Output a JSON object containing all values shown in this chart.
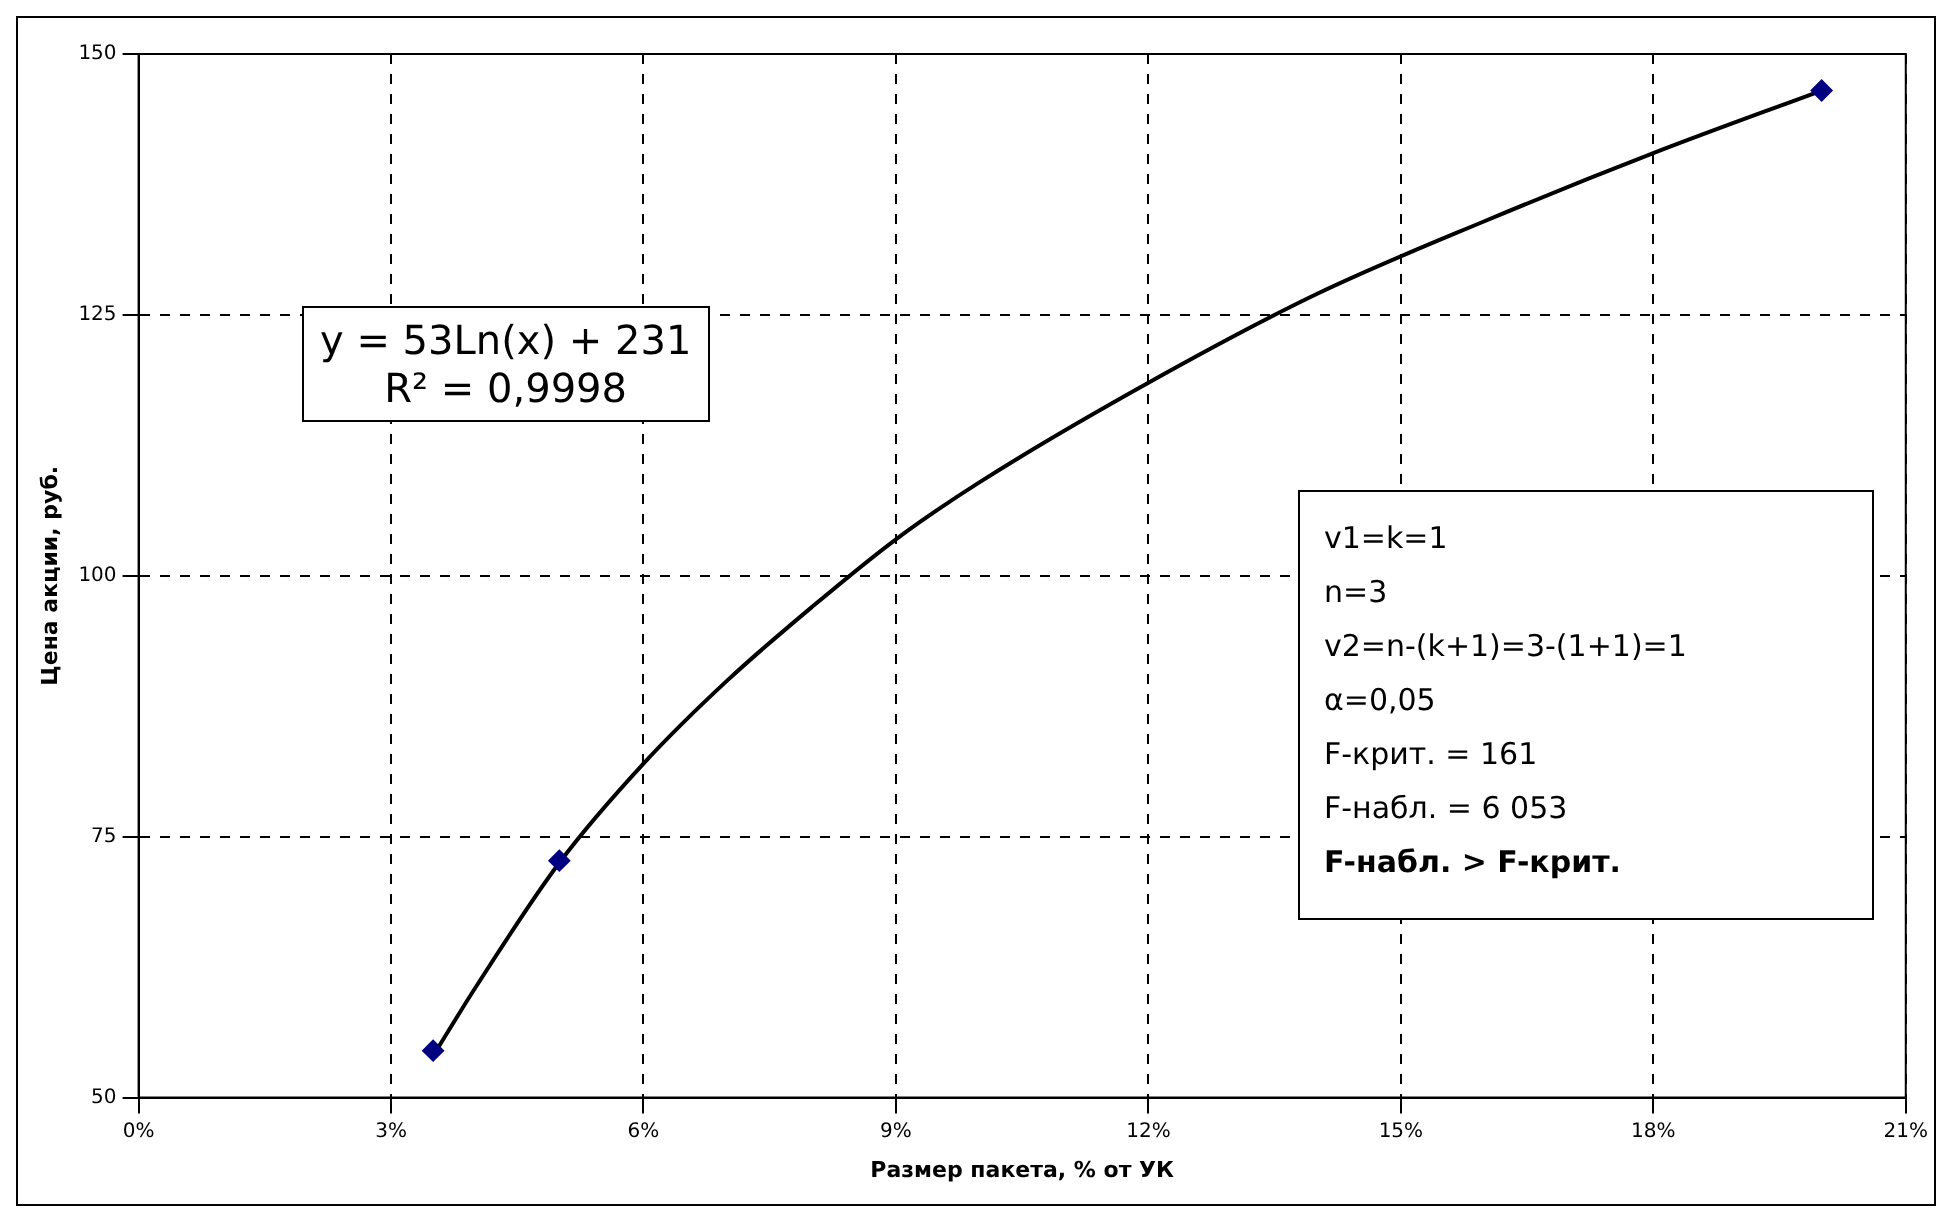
{
  "chart_data": {
    "type": "scatter",
    "xlabel": "Размер пакета, % от УК",
    "ylabel": "Цена акции, руб.",
    "xlim": [
      0,
      21
    ],
    "xticks": [
      {
        "value": 0,
        "label": "0%"
      },
      {
        "value": 3,
        "label": "3%"
      },
      {
        "value": 6,
        "label": "6%"
      },
      {
        "value": 9,
        "label": "9%"
      },
      {
        "value": 12,
        "label": "12%"
      },
      {
        "value": 15,
        "label": "15%"
      },
      {
        "value": 18,
        "label": "18%"
      },
      {
        "value": 21,
        "label": "21%"
      }
    ],
    "ylim": [
      50,
      150
    ],
    "yticks": [
      50,
      75,
      100,
      125,
      150
    ],
    "grid": true,
    "marker": "diamond",
    "series": [
      {
        "type": "line",
        "marker": "none",
        "color": "#000000",
        "x": [
          3.5,
          4,
          5,
          6,
          7,
          8,
          9,
          10,
          12,
          14,
          16,
          18,
          20
        ],
        "values": [
          54,
          60.5,
          72.5,
          82,
          90,
          97,
          103.5,
          109,
          118.5,
          127,
          134,
          140.5,
          146.5
        ]
      },
      {
        "type": "scatter",
        "color": "#000080",
        "x": [
          3.5,
          5,
          20
        ],
        "values": [
          54.5,
          72.7,
          146.5
        ]
      }
    ],
    "annotations": [
      "y = 53Ln(x) + 231\nR² = 0,9998",
      "v1=k=1\nn=3\nv2=n-(k+1)=3-(1+1)=1\nα=0,05\nF-крит. = 161\nF-набл. = 6 053\nF-набл. > F-крит."
    ]
  }
}
